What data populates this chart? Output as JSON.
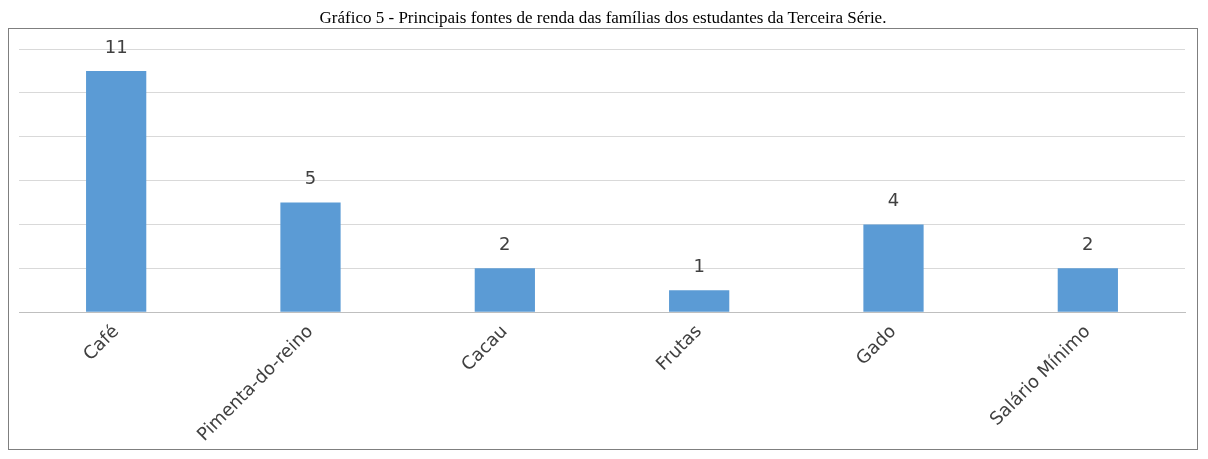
{
  "chart_data": {
    "type": "bar",
    "title": "Gráfico 5 - Principais fontes de renda das famílias dos estudantes da Terceira Série.",
    "categories": [
      "Café",
      "Pimenta-do-reino",
      "Cacau",
      "Frutas",
      "Gado",
      "Salário Mínimo"
    ],
    "values": [
      11,
      5,
      2,
      1,
      4,
      2
    ],
    "color": "#5b9bd5",
    "ylim": [
      0,
      12
    ],
    "yticks": [
      {
        "value": 0,
        "label": null
      },
      {
        "value": 2,
        "label": null
      },
      {
        "value": 4,
        "label": null
      },
      {
        "value": 6,
        "label": null
      },
      {
        "value": 8,
        "label": null
      },
      {
        "value": 10,
        "label": null
      },
      {
        "value": 12,
        "label": null
      }
    ],
    "grid": "y",
    "tick_labels": "x",
    "data_labels": true
  }
}
